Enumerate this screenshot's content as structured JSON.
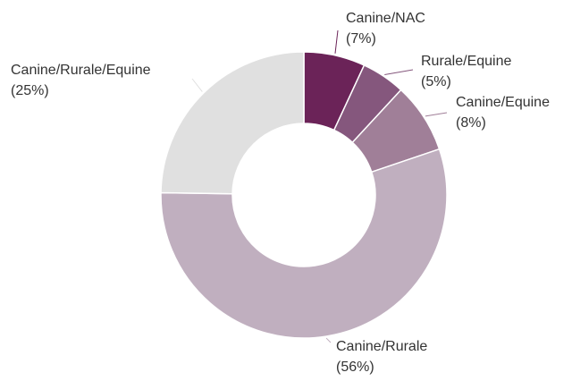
{
  "chart_data": {
    "type": "donut",
    "categories": [
      "Canine/NAC",
      "Rurale/Equine",
      "Canine/Equine",
      "Canine/Rurale",
      "Canine/Rurale/Equine"
    ],
    "values": [
      7,
      5,
      8,
      56,
      25
    ],
    "value_labels": [
      "(7%)",
      "(5%)",
      "(8%)",
      "(56%)",
      "(25%)"
    ],
    "colors": [
      "#6b2358",
      "#85577d",
      "#a07f98",
      "#c0afbf",
      "#e0e0e0"
    ]
  }
}
